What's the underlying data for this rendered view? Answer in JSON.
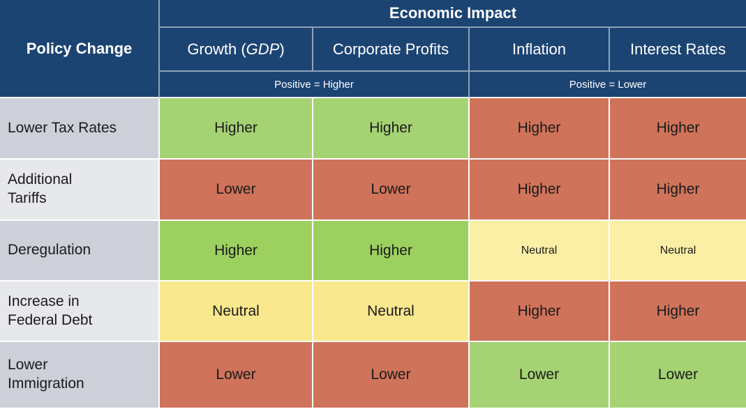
{
  "colors": {
    "header_bg": "#1c4473",
    "header_text": "#ffffff",
    "grid_line_header": "#8fa2b8",
    "grid_line_body": "#ffffff",
    "positive_green": "#a5d373",
    "positive_green_strong": "#9cd05f",
    "negative_red": "#cf735a",
    "neutral_yellow": "#f9e88d",
    "neutral_yellow_pale": "#fbefa6",
    "row_label_odd": "#cdd0d9",
    "row_label_even": "#e7e8ec",
    "body_text": "#1a1a1a"
  },
  "chart_data": {
    "type": "table",
    "title": "Economic Impact",
    "corner_header": "Policy Change",
    "columns": [
      {
        "full_label": "Growth (GDP)",
        "label_pre": "Growth (",
        "label_italic": "GDP",
        "label_post": ")",
        "note": "Positive = Higher"
      },
      {
        "full_label": "Corporate Profits",
        "note": "Positive = Higher"
      },
      {
        "full_label": "Inflation",
        "note": "Positive = Lower"
      },
      {
        "full_label": "Interest Rates",
        "note": "Positive = Lower"
      }
    ],
    "subheaders": [
      {
        "label": "Positive = Higher",
        "spans": [
          "Growth (GDP)",
          "Corporate Profits"
        ]
      },
      {
        "label": "Positive = Lower",
        "spans": [
          "Inflation",
          "Interest Rates"
        ]
      }
    ],
    "rows": [
      {
        "label": "Lower Tax Rates",
        "cells": [
          {
            "text": "Higher",
            "sentiment": "positive"
          },
          {
            "text": "Higher",
            "sentiment": "positive"
          },
          {
            "text": "Higher",
            "sentiment": "negative"
          },
          {
            "text": "Higher",
            "sentiment": "negative"
          }
        ]
      },
      {
        "label": "Additional\nTariffs",
        "cells": [
          {
            "text": "Lower",
            "sentiment": "negative"
          },
          {
            "text": "Lower",
            "sentiment": "negative"
          },
          {
            "text": "Higher",
            "sentiment": "negative"
          },
          {
            "text": "Higher",
            "sentiment": "negative"
          }
        ]
      },
      {
        "label": "Deregulation",
        "cells": [
          {
            "text": "Higher",
            "sentiment": "positive"
          },
          {
            "text": "Higher",
            "sentiment": "positive"
          },
          {
            "text": "Neutral",
            "sentiment": "neutral"
          },
          {
            "text": "Neutral",
            "sentiment": "neutral"
          }
        ]
      },
      {
        "label": "Increase in\nFederal Debt",
        "cells": [
          {
            "text": "Neutral",
            "sentiment": "neutral"
          },
          {
            "text": "Neutral",
            "sentiment": "neutral"
          },
          {
            "text": "Higher",
            "sentiment": "negative"
          },
          {
            "text": "Higher",
            "sentiment": "negative"
          }
        ]
      },
      {
        "label": "Lower\nImmigration",
        "cells": [
          {
            "text": "Lower",
            "sentiment": "negative"
          },
          {
            "text": "Lower",
            "sentiment": "negative"
          },
          {
            "text": "Lower",
            "sentiment": "positive"
          },
          {
            "text": "Lower",
            "sentiment": "positive"
          }
        ]
      }
    ]
  }
}
